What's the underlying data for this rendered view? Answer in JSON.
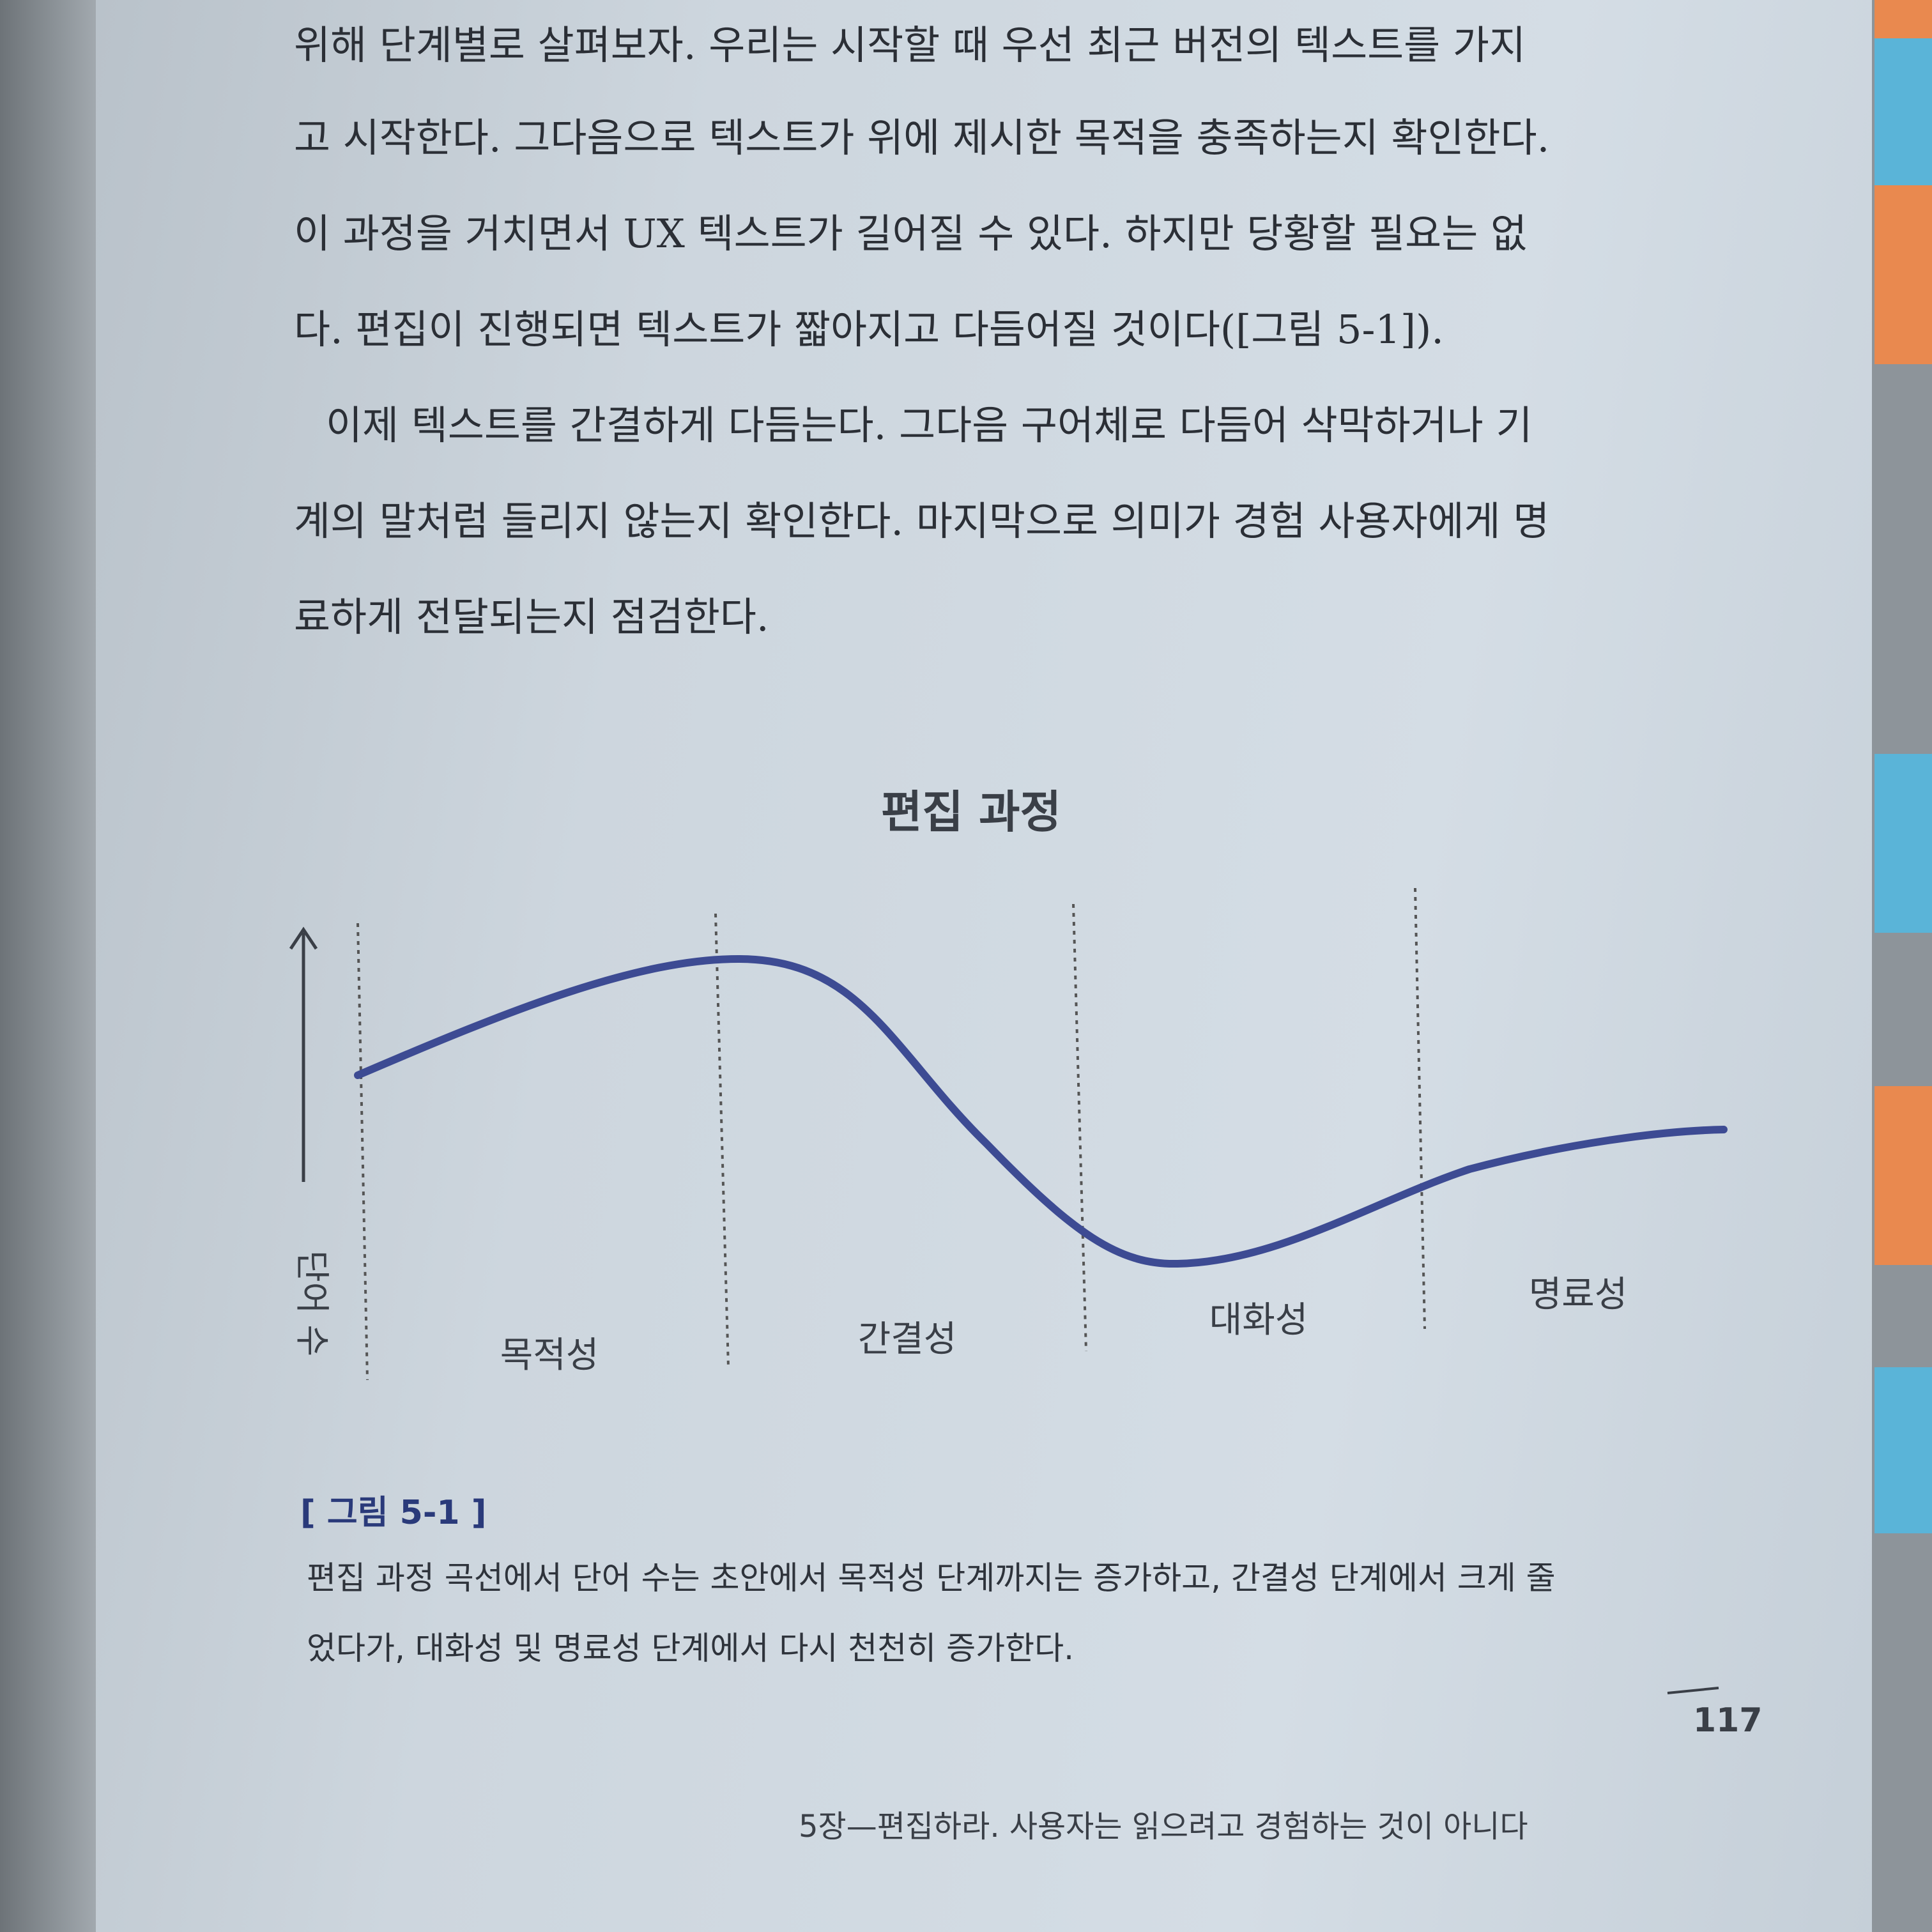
{
  "body": {
    "paragraphs": [
      [
        "위해 단계별로 살펴보자. 우리는 시작할 때 우선 최근 버전의 텍스트를 가지",
        "고 시작한다. 그다음으로 텍스트가 위에 제시한 목적을 충족하는지 확인한다.",
        "이 과정을 거치면서 UX 텍스트가 길어질 수 있다. 하지만 당황할 필요는 없",
        "다. 편집이 진행되면 텍스트가 짧아지고 다듬어질 것이다([그림 5-1])."
      ],
      [
        "이제 텍스트를 간결하게 다듬는다. 그다음 구어체로 다듬어 삭막하거나 기",
        "계의 말처럼 들리지 않는지 확인한다. 마지막으로 의미가 경험 사용자에게 명",
        "료하게 전달되는지 점검한다."
      ]
    ]
  },
  "figure": {
    "title": "편집 과정",
    "y_axis_label": "단어 수",
    "stages": [
      "목적성",
      "간결성",
      "대화성",
      "명료성"
    ]
  },
  "caption": {
    "label": "[ 그림 5-1 ]",
    "lines": [
      "편집 과정 곡선에서 단어 수는 초안에서 목적성 단계까지는 증가하고, 간결성 단계에서 크게 줄",
      "었다가, 대화성 및 명료성 단계에서 다시 천천히 증가한다."
    ]
  },
  "footer": {
    "running_title": "5장—편집하라. 사용자는 읽으려고 경험하는 것이 아니다",
    "page_number": "117"
  }
}
